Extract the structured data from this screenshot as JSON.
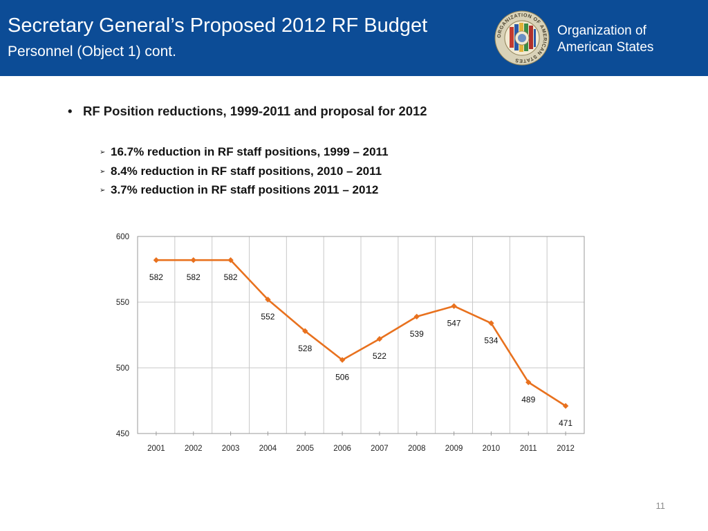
{
  "header": {
    "title": "Secretary General’s Proposed 2012 RF Budget",
    "subtitle": "Personnel (Object 1) cont.",
    "org_line1": "Organization of",
    "org_line2": "American States",
    "seal_text": "ORGANIZATION OF AMERICAN STATES",
    "background_color": "#0c4c96"
  },
  "content": {
    "main_bullet": "RF Position reductions, 1999-2011 and proposal for 2012",
    "sub_bullets": [
      "16.7% reduction in RF staff positions, 1999 – 2011",
      "8.4% reduction in RF staff positions, 2010 – 2011",
      "3.7% reduction in RF staff positions 2011 – 2012"
    ]
  },
  "chart_data": {
    "type": "line",
    "title": "",
    "xlabel": "",
    "ylabel": "",
    "categories": [
      "2001",
      "2002",
      "2003",
      "2004",
      "2005",
      "2006",
      "2007",
      "2008",
      "2009",
      "2010",
      "2011",
      "2012"
    ],
    "series": [
      {
        "values": [
          582,
          582,
          582,
          552,
          528,
          506,
          522,
          539,
          547,
          534,
          489,
          471
        ],
        "color": "#e8711e",
        "marker": "diamond"
      }
    ],
    "ylim": [
      450,
      600
    ],
    "yticks": [
      450,
      500,
      550,
      600
    ],
    "grid": true,
    "legend": "none",
    "data_labels": true
  },
  "page_number": "11"
}
